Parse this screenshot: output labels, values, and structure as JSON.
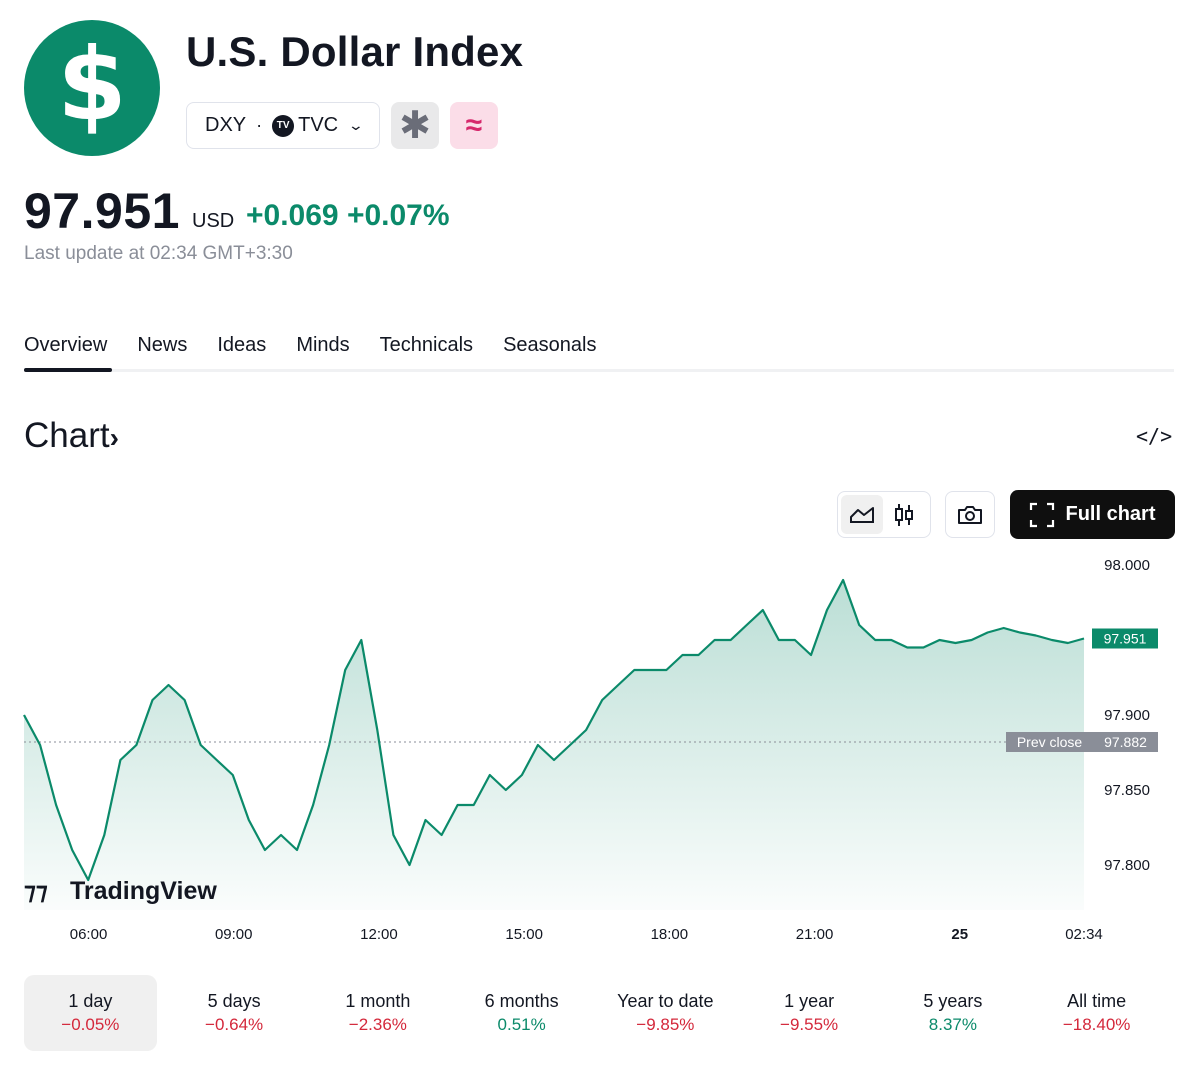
{
  "header": {
    "logo_symbol": "$",
    "title": "U.S. Dollar Index",
    "ticker": "DXY",
    "exchange_badge": "TV",
    "exchange": "TVC",
    "icons": [
      "asterisk-icon",
      "approx-icon"
    ]
  },
  "quote": {
    "price": "97.951",
    "currency": "USD",
    "change": "+0.069",
    "change_percent": "+0.07%",
    "last_update": "Last update at 02:34 GMT+3:30"
  },
  "tabs": [
    "Overview",
    "News",
    "Ideas",
    "Minds",
    "Technicals",
    "Seasonals"
  ],
  "active_tab": "Overview",
  "chart_section": {
    "heading": "Chart",
    "full_chart_label": "Full chart",
    "watermark": "TradingView"
  },
  "chart_data": {
    "type": "area",
    "x_tick_labels": [
      "06:00",
      "09:00",
      "12:00",
      "15:00",
      "18:00",
      "21:00",
      "25",
      "02:34"
    ],
    "y_tick_labels": [
      "98.000",
      "97.900",
      "97.850",
      "97.800"
    ],
    "ylim": [
      97.77,
      98.01
    ],
    "prev_close_label": "Prev close",
    "prev_close": 97.882,
    "last_value_label": "97.951",
    "prev_close_value_label": "97.882",
    "line_color": "#0b8a6a",
    "series": [
      {
        "x": [
          "04:40",
          "05:00",
          "05:20",
          "05:40",
          "06:00",
          "06:20",
          "06:40",
          "07:00",
          "07:20",
          "07:40",
          "08:00",
          "08:20",
          "08:40",
          "09:00",
          "09:20",
          "09:40",
          "10:00",
          "10:20",
          "10:40",
          "11:00",
          "11:20",
          "11:40",
          "12:00",
          "12:20",
          "12:40",
          "13:00",
          "13:20",
          "13:40",
          "14:00",
          "14:20",
          "14:40",
          "15:00",
          "15:20",
          "15:40",
          "16:00",
          "16:20",
          "16:40",
          "17:00",
          "17:20",
          "17:40",
          "18:00",
          "18:20",
          "18:40",
          "19:00",
          "19:20",
          "19:40",
          "20:00",
          "20:20",
          "20:40",
          "21:00",
          "21:20",
          "21:40",
          "22:00",
          "22:20",
          "22:40",
          "23:00",
          "23:20",
          "23:40",
          "00:00",
          "00:20",
          "00:40",
          "01:00",
          "01:20",
          "01:40",
          "02:00",
          "02:20",
          "02:34"
        ],
        "values": [
          97.9,
          97.88,
          97.84,
          97.81,
          97.79,
          97.82,
          97.87,
          97.88,
          97.91,
          97.92,
          97.91,
          97.88,
          97.87,
          97.86,
          97.83,
          97.81,
          97.82,
          97.81,
          97.84,
          97.88,
          97.93,
          97.95,
          97.89,
          97.82,
          97.8,
          97.83,
          97.82,
          97.84,
          97.84,
          97.86,
          97.85,
          97.86,
          97.88,
          97.87,
          97.88,
          97.89,
          97.91,
          97.92,
          97.93,
          97.93,
          97.93,
          97.94,
          97.94,
          97.95,
          97.95,
          97.96,
          97.97,
          97.95,
          97.95,
          97.94,
          97.97,
          97.99,
          97.96,
          97.95,
          97.95,
          97.945,
          97.945,
          97.95,
          97.948,
          97.95,
          97.955,
          97.958,
          97.955,
          97.953,
          97.95,
          97.948,
          97.951
        ]
      }
    ]
  },
  "periods": [
    {
      "label": "1 day",
      "value": "−0.05%",
      "sign": "neg"
    },
    {
      "label": "5 days",
      "value": "−0.64%",
      "sign": "neg"
    },
    {
      "label": "1 month",
      "value": "−2.36%",
      "sign": "neg"
    },
    {
      "label": "6 months",
      "value": "0.51%",
      "sign": "pos"
    },
    {
      "label": "Year to date",
      "value": "−9.85%",
      "sign": "neg"
    },
    {
      "label": "1 year",
      "value": "−9.55%",
      "sign": "neg"
    },
    {
      "label": "5 years",
      "value": "8.37%",
      "sign": "pos"
    },
    {
      "label": "All time",
      "value": "−18.40%",
      "sign": "neg"
    }
  ],
  "colors": {
    "brand_green": "#0b8a6a",
    "negative": "#d4283b",
    "approx_pink": "#d6276b"
  }
}
